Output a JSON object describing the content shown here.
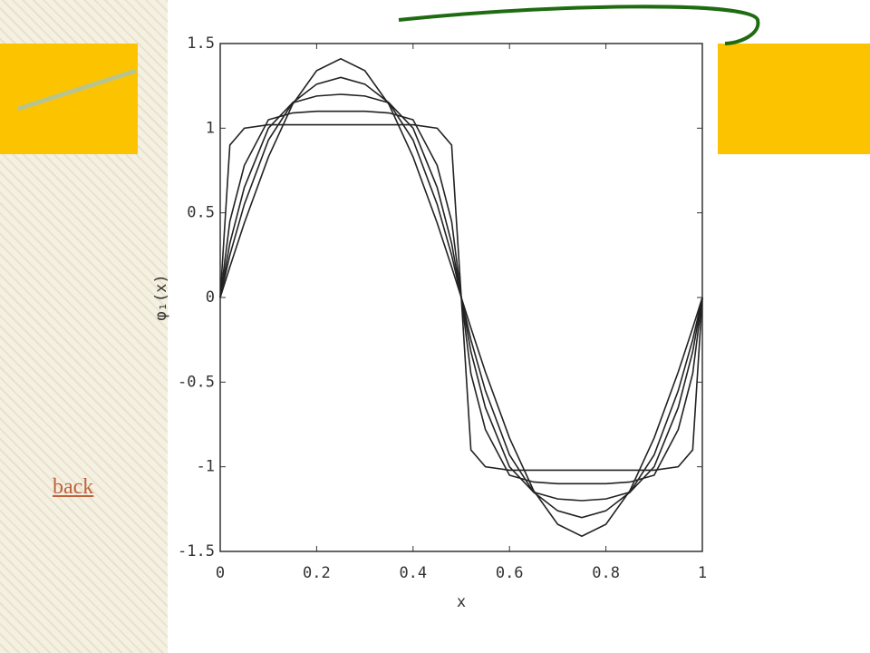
{
  "chart_data": {
    "type": "line",
    "x": [
      0,
      0.02,
      0.05,
      0.1,
      0.15,
      0.2,
      0.25,
      0.3,
      0.35,
      0.4,
      0.45,
      0.48,
      0.5,
      0.52,
      0.55,
      0.6,
      0.65,
      0.7,
      0.75,
      0.8,
      0.85,
      0.9,
      0.95,
      0.98,
      1
    ],
    "series": [
      {
        "color": "#222222",
        "values": [
          0,
          0.18,
          0.44,
          0.83,
          1.14,
          1.34,
          1.41,
          1.34,
          1.14,
          0.83,
          0.44,
          0.18,
          0,
          -0.18,
          -0.44,
          -0.83,
          -1.14,
          -1.34,
          -1.41,
          -1.34,
          -1.14,
          -0.83,
          -0.44,
          -0.18,
          0
        ]
      },
      {
        "color": "#222222",
        "values": [
          0,
          0.25,
          0.55,
          0.93,
          1.15,
          1.26,
          1.3,
          1.26,
          1.15,
          0.93,
          0.55,
          0.25,
          0,
          -0.25,
          -0.55,
          -0.93,
          -1.15,
          -1.26,
          -1.3,
          -1.26,
          -1.15,
          -0.93,
          -0.55,
          -0.25,
          0
        ]
      },
      {
        "color": "#222222",
        "values": [
          0,
          0.32,
          0.65,
          1.0,
          1.15,
          1.19,
          1.2,
          1.19,
          1.15,
          1.0,
          0.65,
          0.32,
          0,
          -0.32,
          -0.65,
          -1.0,
          -1.15,
          -1.19,
          -1.2,
          -1.19,
          -1.15,
          -1.0,
          -0.65,
          -0.32,
          0
        ]
      },
      {
        "color": "#222222",
        "values": [
          0,
          0.45,
          0.78,
          1.05,
          1.09,
          1.1,
          1.1,
          1.1,
          1.09,
          1.05,
          0.78,
          0.45,
          0,
          -0.45,
          -0.78,
          -1.05,
          -1.09,
          -1.1,
          -1.1,
          -1.1,
          -1.09,
          -1.05,
          -0.78,
          -0.45,
          0
        ]
      },
      {
        "color": "#222222",
        "values": [
          0,
          0.9,
          1.0,
          1.02,
          1.02,
          1.02,
          1.02,
          1.02,
          1.02,
          1.02,
          1.0,
          0.9,
          0,
          -0.9,
          -1.0,
          -1.02,
          -1.02,
          -1.02,
          -1.02,
          -1.02,
          -1.02,
          -1.02,
          -1.0,
          -0.9,
          0
        ]
      }
    ],
    "xlabel": "x",
    "ylabel": "φ₁(x)",
    "xlim": [
      0,
      1
    ],
    "xticks": [
      0,
      0.2,
      0.4,
      0.6,
      0.8,
      1
    ],
    "ylim": [
      -1.5,
      1.5
    ],
    "yticks": [
      -1.5,
      -1,
      -0.5,
      0,
      0.5,
      1,
      1.5
    ],
    "grid": false
  },
  "link": {
    "text": "back"
  }
}
